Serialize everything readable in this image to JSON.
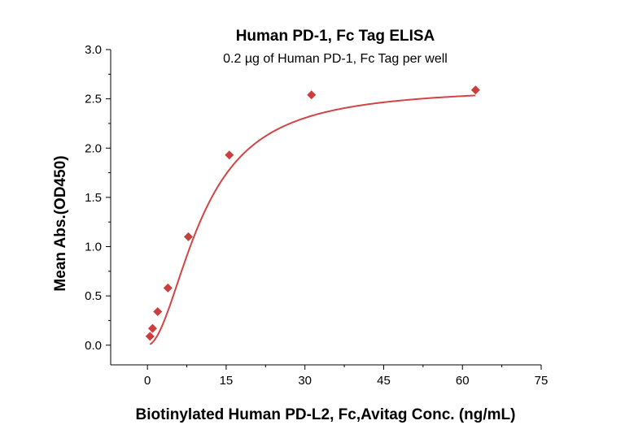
{
  "chart_data": {
    "type": "scatter",
    "title": "Human PD-1, Fc Tag ELISA",
    "subtitle": "0.2 µg of Human PD-1, Fc Tag per well",
    "xlabel": "Biotinylated Human PD-L2, Fc,Avitag Conc. (ng/mL)",
    "ylabel": "Mean Abs.(OD450)",
    "xlim": [
      -7,
      75
    ],
    "ylim": [
      -0.2,
      3.0
    ],
    "xticks": [
      0,
      15,
      30,
      45,
      60,
      75
    ],
    "xtick_labels": [
      "0",
      "15",
      "30",
      "45",
      "60",
      "75"
    ],
    "yticks": [
      0.0,
      0.5,
      1.0,
      1.5,
      2.0,
      2.5,
      3.0
    ],
    "ytick_labels": [
      "0.0",
      "0.5",
      "1.0",
      "1.5",
      "2.0",
      "2.5",
      "3.0"
    ],
    "grid": false,
    "series": [
      {
        "x": [
          0.49,
          0.98,
          1.95,
          3.9,
          7.8,
          15.6,
          31.25,
          62.5
        ],
        "y": [
          0.09,
          0.17,
          0.34,
          0.58,
          1.1,
          1.93,
          2.54,
          2.59
        ],
        "marker": "diamond",
        "color": "#cc3d3d",
        "fit": {
          "type": "4PL",
          "color": "#d04545",
          "bottom": 0.0,
          "top": 2.62,
          "ec50": 10.5,
          "hill": 1.9
        }
      }
    ]
  }
}
